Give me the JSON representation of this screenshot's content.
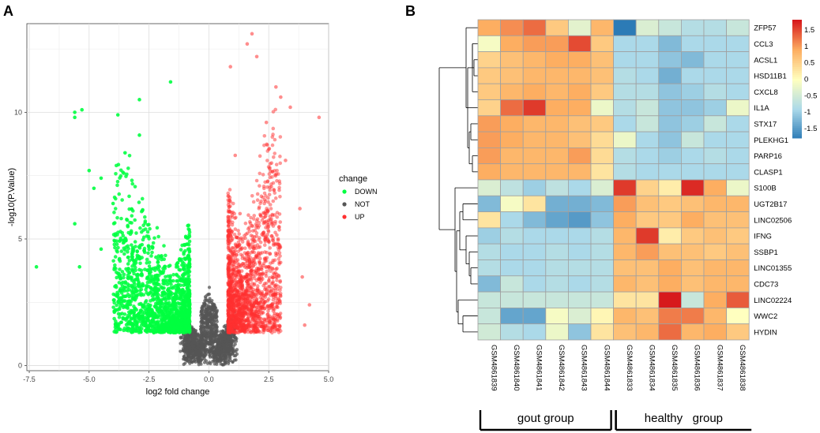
{
  "panels": {
    "a_label": "A",
    "b_label": "B"
  },
  "chart_data": [
    {
      "type": "scatter",
      "title": "",
      "xlabel": "log2 fold change",
      "ylabel": "-log10(P.Value)",
      "xlim": [
        -7.6,
        5.0
      ],
      "ylim": [
        -0.2,
        13.5
      ],
      "x_ticks": [
        -7.5,
        -5.0,
        -2.5,
        0.0,
        2.5,
        5.0
      ],
      "x_tick_labels": [
        "-7.5",
        "-5.0",
        "-2.5",
        "0.0",
        "2.5",
        "5.0"
      ],
      "y_ticks": [
        0,
        5,
        10
      ],
      "y_tick_labels": [
        "0",
        "5",
        "10"
      ],
      "grid": true,
      "legend": {
        "title": "change",
        "position": "right",
        "entries": [
          {
            "label": "DOWN",
            "color": "#00ff40"
          },
          {
            "label": "NOT",
            "color": "#555555"
          },
          {
            "label": "UP",
            "color": "#ff3030"
          }
        ]
      },
      "series": [
        {
          "name": "DOWN",
          "color": "#00ff40",
          "points": [
            [
              -7.2,
              3.9
            ],
            [
              -5.6,
              9.8
            ],
            [
              -5.6,
              10.0
            ],
            [
              -5.3,
              10.1
            ],
            [
              -5.6,
              5.6
            ],
            [
              -5.0,
              7.7
            ],
            [
              -4.5,
              7.4
            ],
            [
              -5.4,
              3.9
            ],
            [
              -4.8,
              7.0
            ],
            [
              -3.8,
              9.9
            ],
            [
              -2.9,
              10.5
            ],
            [
              -1.6,
              11.2
            ],
            [
              -4.0,
              6.4
            ],
            [
              -3.5,
              8.4
            ],
            [
              -2.9,
              9.1
            ],
            [
              -3.9,
              5.2
            ],
            [
              -4.5,
              4.6
            ],
            [
              -3.2,
              4.4
            ],
            [
              -2.6,
              3.1
            ],
            [
              -2.2,
              2.3
            ],
            [
              -1.7,
              1.6
            ]
          ]
        },
        {
          "name": "UP",
          "color": "#ff3030",
          "points": [
            [
              1.8,
              13.1
            ],
            [
              1.6,
              12.7
            ],
            [
              2.0,
              12.2
            ],
            [
              0.9,
              11.8
            ],
            [
              2.8,
              11.0
            ],
            [
              3.4,
              10.2
            ],
            [
              4.6,
              9.8
            ],
            [
              3.0,
              10.6
            ],
            [
              2.4,
              9.6
            ],
            [
              3.2,
              8.1
            ],
            [
              3.8,
              6.2
            ],
            [
              2.9,
              4.8
            ],
            [
              2.5,
              3.9
            ],
            [
              3.9,
              3.5
            ],
            [
              4.2,
              2.4
            ],
            [
              4.0,
              1.6
            ],
            [
              2.4,
              1.8
            ],
            [
              2.0,
              2.6
            ],
            [
              1.5,
              4.2
            ],
            [
              1.3,
              6.0
            ],
            [
              1.1,
              8.3
            ]
          ]
        },
        {
          "name": "NOT",
          "color": "#555555",
          "points": []
        }
      ]
    },
    {
      "type": "heatmap",
      "title": "",
      "rows": [
        "ZFP57",
        "CCL3",
        "ACSL1",
        "HSD11B1",
        "CXCL8",
        "IL1A",
        "STX17",
        "PLEKHG1",
        "PARP16",
        "CLASP1",
        "S100B",
        "UGT2B17",
        "LINC02506",
        "IFNG",
        "SSBP1",
        "LINC01355",
        "CDC73",
        "LINC02224",
        "WWC2",
        "HYDIN"
      ],
      "columns": [
        "GSM4861839",
        "GSM4861840",
        "GSM4861841",
        "GSM4861842",
        "GSM4861843",
        "GSM4861844",
        "GSM4861833",
        "GSM4861834",
        "GSM4861835",
        "GSM4861836",
        "GSM4861837",
        "GSM4861838"
      ],
      "values": [
        [
          0.9,
          1.1,
          1.3,
          0.6,
          -0.3,
          0.8,
          -1.8,
          -0.4,
          -0.6,
          -0.8,
          -0.8,
          -0.6
        ],
        [
          -0.1,
          0.9,
          1.0,
          1.0,
          1.5,
          0.6,
          -0.9,
          -0.9,
          -1.2,
          -0.9,
          -0.9,
          -0.9
        ],
        [
          0.5,
          0.7,
          0.8,
          0.9,
          0.9,
          0.7,
          -0.9,
          -0.9,
          -1.1,
          -1.2,
          -0.9,
          -0.9
        ],
        [
          0.6,
          0.7,
          0.8,
          0.8,
          0.8,
          0.7,
          -0.8,
          -0.9,
          -1.3,
          -0.9,
          -0.9,
          -0.9
        ],
        [
          0.6,
          0.8,
          0.9,
          0.8,
          0.9,
          0.6,
          -0.8,
          -0.8,
          -1.1,
          -1.0,
          -0.8,
          -0.9
        ],
        [
          0.5,
          1.3,
          1.6,
          0.9,
          0.9,
          -0.2,
          -0.8,
          -0.6,
          -1.1,
          -1.1,
          -1.0,
          -0.2
        ],
        [
          1.0,
          0.9,
          0.8,
          0.8,
          0.7,
          0.6,
          -0.9,
          -0.6,
          -1.1,
          -1.0,
          -0.6,
          -0.9
        ],
        [
          1.0,
          0.9,
          0.8,
          0.8,
          0.7,
          0.4,
          -0.2,
          -0.9,
          -1.1,
          -0.6,
          -0.9,
          -0.9
        ],
        [
          1.0,
          0.8,
          0.8,
          0.8,
          1.0,
          0.4,
          -0.8,
          -0.9,
          -1.0,
          -0.9,
          -0.8,
          -0.9
        ],
        [
          0.9,
          0.8,
          0.8,
          0.8,
          0.8,
          0.3,
          -0.8,
          -0.9,
          -0.9,
          -0.9,
          -0.9,
          -0.9
        ],
        [
          -0.4,
          -0.7,
          -1.0,
          -0.7,
          -0.9,
          -0.4,
          1.6,
          0.5,
          0.2,
          1.7,
          0.9,
          -0.2
        ],
        [
          -1.2,
          -0.1,
          0.3,
          -1.3,
          -1.3,
          -1.2,
          1.0,
          0.7,
          0.6,
          0.7,
          0.8,
          0.8
        ],
        [
          0.3,
          -0.9,
          -1.2,
          -1.4,
          -1.5,
          -1.1,
          0.9,
          0.6,
          0.6,
          0.9,
          0.7,
          0.7
        ],
        [
          -1.0,
          -0.8,
          -0.9,
          -0.9,
          -0.9,
          -0.8,
          0.8,
          1.6,
          0.2,
          0.6,
          0.7,
          0.6
        ],
        [
          -0.8,
          -0.9,
          -0.9,
          -0.8,
          -0.9,
          -0.8,
          0.8,
          1.0,
          0.7,
          0.7,
          0.6,
          0.7
        ],
        [
          -0.8,
          -0.9,
          -0.9,
          -0.8,
          -0.8,
          -0.8,
          0.7,
          0.7,
          0.9,
          0.7,
          0.8,
          0.8
        ],
        [
          -1.2,
          -0.6,
          -0.9,
          -0.8,
          -0.9,
          -0.8,
          0.8,
          0.7,
          0.9,
          0.7,
          0.8,
          0.8
        ],
        [
          -0.6,
          -0.6,
          -0.6,
          -0.6,
          -0.6,
          -0.6,
          0.3,
          0.3,
          1.8,
          -0.6,
          0.9,
          1.4
        ],
        [
          -0.6,
          -1.4,
          -1.4,
          -0.1,
          -0.4,
          0.1,
          0.8,
          0.7,
          1.2,
          1.2,
          0.8,
          0.0
        ],
        [
          -0.5,
          -0.8,
          -0.9,
          -0.2,
          -1.1,
          0.3,
          0.7,
          0.8,
          1.3,
          0.8,
          0.9,
          0.6
        ]
      ],
      "colorbar": {
        "ticks": [
          1.5,
          1,
          0.5,
          0,
          -0.5,
          -1,
          -1.5
        ],
        "tick_labels": [
          "1.5",
          "1",
          "0.5",
          "0",
          "-0.5",
          "-1",
          "-1.5"
        ],
        "range": [
          -1.8,
          1.8
        ],
        "colors": {
          "low": "#2c7bb6",
          "mid": "#ffffbf",
          "high": "#d7191c"
        }
      },
      "groups": [
        {
          "label": "gout group",
          "start_col": 0,
          "end_col": 5
        },
        {
          "label": "healthy   group",
          "start_col": 6,
          "end_col": 11
        }
      ]
    }
  ]
}
